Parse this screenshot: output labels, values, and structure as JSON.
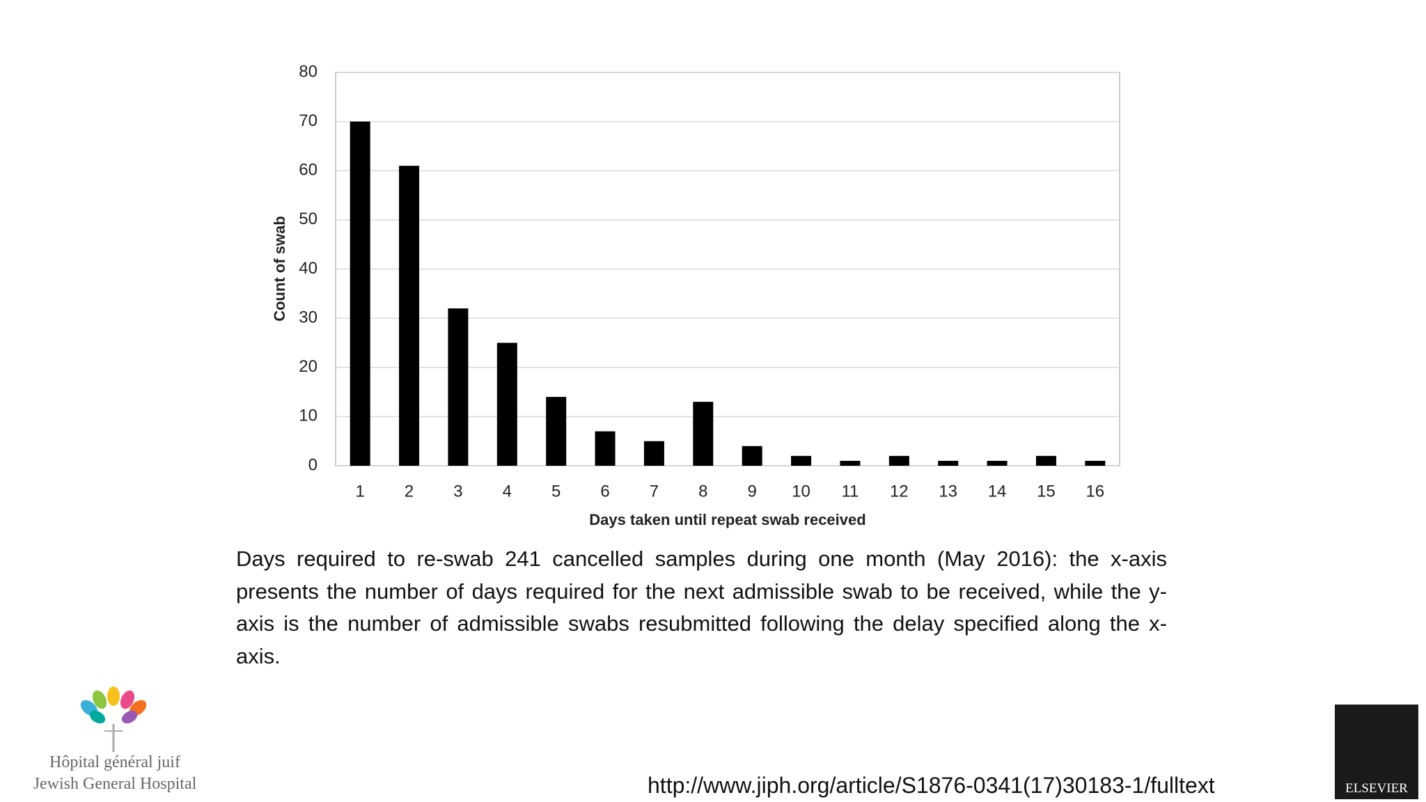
{
  "chart_data": {
    "type": "bar",
    "x_label": "Days taken until repeat swab received",
    "y_label": "Count of swab",
    "categories": [
      "1",
      "2",
      "3",
      "4",
      "5",
      "6",
      "7",
      "8",
      "9",
      "10",
      "11",
      "12",
      "13",
      "14",
      "15",
      "16"
    ],
    "values": [
      70,
      61,
      32,
      25,
      14,
      7,
      5,
      13,
      4,
      2,
      1,
      2,
      1,
      1,
      2,
      1
    ],
    "color": "#000000",
    "ylim": [
      0,
      80
    ],
    "yticks": [
      0,
      10,
      20,
      30,
      40,
      50,
      60,
      70,
      80
    ],
    "grid": true
  },
  "caption": "Days required to re-swab 241 cancelled samples during one month (May 2016): the x-axis presents the number of days required for the next admissible swab to be received, while the y-axis is the number of admissible swabs resubmitted following the delay specified along the x-axis.",
  "source_url": "http://www.jiph.org/article/S1876-0341(17)30183-1/fulltext",
  "logos": {
    "hospital_fr": "Hôpital général juif",
    "hospital_en": "Jewish General Hospital",
    "publisher": "ELSEVIER"
  }
}
